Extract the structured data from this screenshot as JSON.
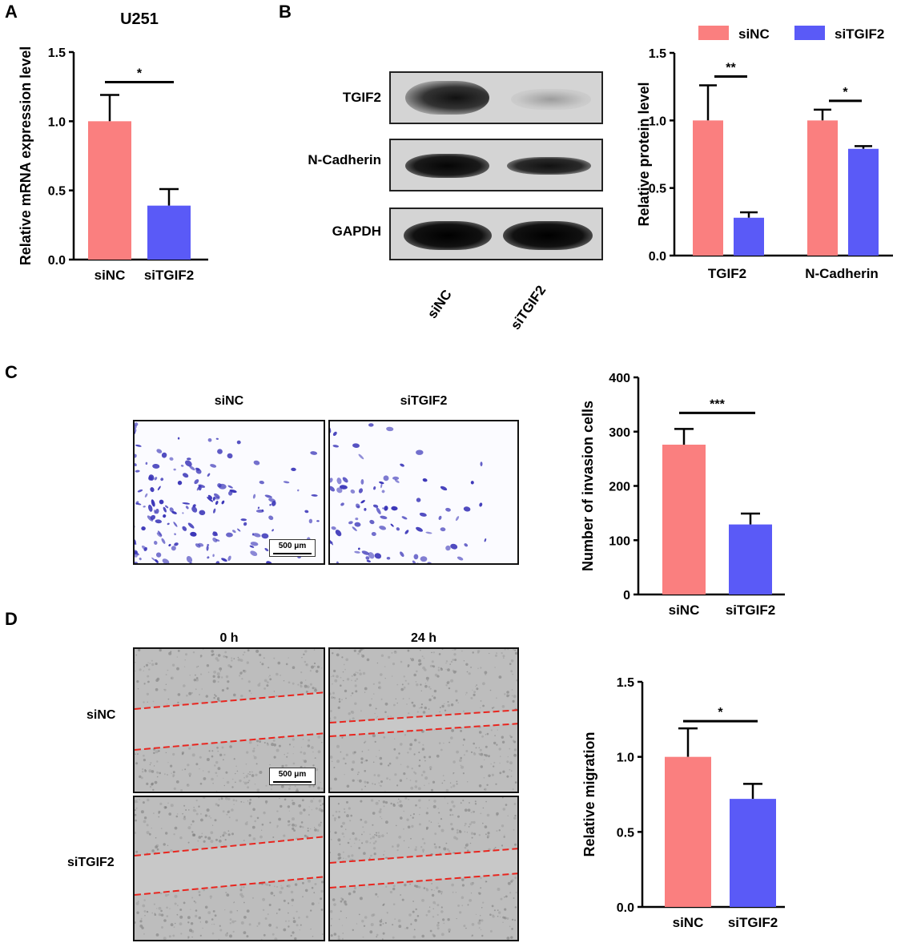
{
  "panels": {
    "a": {
      "letter": "A"
    },
    "b": {
      "letter": "B"
    },
    "c": {
      "letter": "C"
    },
    "d": {
      "letter": "D"
    }
  },
  "colors": {
    "siNC": "#fa7f7f",
    "siTGIF2": "#5a5af7",
    "wound_line": "#e8261f",
    "stain": "#3a35b8"
  },
  "legend": {
    "siNC": "siNC",
    "siTGIF2": "siTGIF2"
  },
  "western_blot": {
    "rows": [
      "TGIF2",
      "N-Cadherin",
      "GAPDH"
    ],
    "lanes": [
      "siNC",
      "siTGIF2"
    ]
  },
  "invasion_images": {
    "label_siNC": "siNC",
    "label_siTGIF2": "siTGIF2",
    "scale": "500 μm"
  },
  "wound_images": {
    "col_0h": "0 h",
    "col_24h": "24 h",
    "row_siNC": "siNC",
    "row_siTGIF2": "siTGIF2",
    "scale": "500 μm"
  },
  "chart_data": [
    {
      "id": "A",
      "type": "bar",
      "title": "U251",
      "ylabel": "Relative mRNA expression level",
      "ylim": [
        0,
        1.5
      ],
      "yticks": [
        "0.0",
        "0.5",
        "1.0",
        "1.5"
      ],
      "categories": [
        "siNC",
        "siTGIF2"
      ],
      "values": [
        1.0,
        0.39
      ],
      "errors": [
        0.19,
        0.12
      ],
      "significance": [
        "*"
      ]
    },
    {
      "id": "B",
      "type": "bar",
      "ylabel": "Relative protein level",
      "ylim": [
        0,
        1.5
      ],
      "yticks": [
        "0.0",
        "0.5",
        "1.0",
        "1.5"
      ],
      "categories": [
        "TGIF2",
        "N-Cadherin"
      ],
      "series": [
        {
          "name": "siNC",
          "values": [
            1.0,
            1.0
          ],
          "errors": [
            0.26,
            0.08
          ]
        },
        {
          "name": "siTGIF2",
          "values": [
            0.28,
            0.79
          ],
          "errors": [
            0.04,
            0.02
          ]
        }
      ],
      "significance": [
        "**",
        "*"
      ],
      "legend": "top"
    },
    {
      "id": "C",
      "type": "bar",
      "ylabel": "Number of invasion cells",
      "ylim": [
        0,
        400
      ],
      "yticks": [
        "0",
        "100",
        "200",
        "300",
        "400"
      ],
      "categories": [
        "siNC",
        "siTGIF2"
      ],
      "values": [
        276,
        129
      ],
      "errors": [
        29,
        20
      ],
      "significance": [
        "***"
      ]
    },
    {
      "id": "D",
      "type": "bar",
      "ylabel": "Relative migration",
      "ylim": [
        0,
        1.5
      ],
      "yticks": [
        "0.0",
        "0.5",
        "1.0",
        "1.5"
      ],
      "categories": [
        "siNC",
        "siTGIF2"
      ],
      "values": [
        1.0,
        0.72
      ],
      "errors": [
        0.19,
        0.1
      ],
      "significance": [
        "*"
      ]
    }
  ]
}
